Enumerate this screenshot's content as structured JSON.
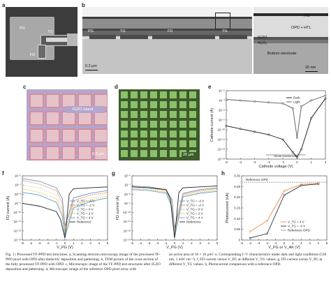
{
  "panels": {
    "a": {
      "letter": "a",
      "pg": "PG",
      "tg": "TG",
      "fd": "FD"
    },
    "b": {
      "letter": "b",
      "layers": [
        "PG",
        "TG",
        "FD",
        "TG"
      ],
      "scale": "0.2 μm",
      "zoom_labels": {
        "ito": "ITO",
        "opd": "OPD + HTL",
        "igzo": "IGZO",
        "al2o3": "Al₂O₃",
        "bottom": "Bottom electrode"
      },
      "zoom_scale": "20 nm"
    },
    "c": {
      "letter": "c",
      "island": "IGZO island",
      "scale": "0.2 μm"
    },
    "d": {
      "letter": "d",
      "scale": "20 μm"
    },
    "e": {
      "letter": "e"
    },
    "f": {
      "letter": "f"
    },
    "g": {
      "letter": "g"
    },
    "h": {
      "letter": "h",
      "reference_label": "Reference OPD"
    }
  },
  "caption": {
    "left": "Fig. 3 | Processed TF-PPD test structures. a, Scanning electron microscopy image of the processed TF-PPD pixel with OPD after dielectric deposition and patterning. b, TEM picture of the cross section of the fully processed TF-PPD with OPD. c, Microscopic image of the TF-PPD test structures after IGZO deposition and patterning. d, Microscopic image of the reference OPD pixel array with",
    "right": "an active area of 10 × 10 μm². e, Corresponding J–V characteristics under dark and light conditions (530 nm, 1 mW cm⁻²). f, FD current versus V_PG at different V_TG values. g, FD current versus V_PG at different V_TG values. h, Photocurrent comparison with a reference OPD."
  },
  "chart_data": [
    {
      "panel": "e",
      "type": "line",
      "xlabel": "Cathode voltage (V)",
      "ylabel": "Cathode current (A)",
      "xlim": [
        -5,
        2
      ],
      "x_ticks": [
        "-5",
        "-4",
        "-3",
        "-2",
        "-1",
        "0",
        "1",
        "2"
      ],
      "y_ticks": [
        "10⁻⁶",
        "10⁻⁷",
        "10⁻⁸",
        "10⁻⁹",
        "10⁻¹⁰",
        "10⁻¹¹",
        "10⁻¹²",
        "10⁻¹³"
      ],
      "annotation": "Diode reverse bias",
      "series": [
        {
          "name": "Dark",
          "x": [
            -5,
            -4,
            -3,
            -2,
            -1,
            -0.3,
            0,
            0.3,
            1,
            2
          ],
          "y": [
            -9.6,
            -9.9,
            -10.2,
            -10.5,
            -11.0,
            -12.3,
            -12.8,
            -12.0,
            -8.8,
            -6.8
          ]
        },
        {
          "name": "Light",
          "x": [
            -5,
            -4,
            -3,
            -2,
            -1,
            -0.3,
            0,
            0.3,
            1,
            2
          ],
          "y": [
            -6.9,
            -7.0,
            -7.1,
            -7.2,
            -7.3,
            -7.8,
            -10.8,
            -7.6,
            -7.0,
            -6.5
          ]
        }
      ]
    },
    {
      "panel": "f",
      "type": "line",
      "xlabel": "V_PG (V)",
      "ylabel": "FD current (A)",
      "xlim": [
        -5,
        5
      ],
      "x_ticks": [
        "-5",
        "-4",
        "-3",
        "-2",
        "-1",
        "0",
        "1",
        "2",
        "3",
        "4",
        "5"
      ],
      "y_ticks": [
        "10⁻⁶",
        "10⁻⁷",
        "10⁻⁸",
        "10⁻⁹",
        "10⁻¹⁰",
        "10⁻¹¹",
        "10⁻¹²",
        "10⁻¹³"
      ],
      "series": [
        {
          "name": "V_TG = -4 V",
          "x": [
            -5,
            -3,
            -1,
            -0.3,
            0,
            1,
            3,
            5
          ],
          "y": [
            -6.3,
            -6.6,
            -7.3,
            -8.5,
            -11.5,
            -8.4,
            -7.9,
            -7.6
          ]
        },
        {
          "name": "V_TG = -2 V",
          "x": [
            -5,
            -3,
            -1,
            -0.3,
            0,
            1,
            3,
            5
          ],
          "y": [
            -6.5,
            -6.9,
            -7.6,
            -9.0,
            -12.0,
            -8.7,
            -8.1,
            -7.8
          ]
        },
        {
          "name": "V_TG = 0 V",
          "x": [
            -5,
            -3,
            -1,
            -0.3,
            0,
            1,
            3,
            5
          ],
          "y": [
            -7.0,
            -7.3,
            -8.1,
            -9.6,
            -12.3,
            -9.0,
            -8.4,
            -8.0
          ]
        },
        {
          "name": "V_TG = 2 V",
          "x": [
            -5,
            -3,
            -1,
            -0.3,
            0,
            1,
            3,
            5
          ],
          "y": [
            -7.4,
            -7.8,
            -8.5,
            -10.0,
            -12.5,
            -9.3,
            -8.6,
            -8.2
          ]
        },
        {
          "name": "V_TG = 4 V",
          "x": [
            -5,
            -3,
            -1,
            -0.3,
            0,
            1,
            3,
            5
          ],
          "y": [
            -7.8,
            -8.1,
            -8.9,
            -10.4,
            -12.7,
            -9.5,
            -8.8,
            -8.4
          ]
        },
        {
          "name": "Reference",
          "x": [
            -5,
            -3,
            -1,
            -0.5,
            0,
            0.5,
            1,
            3,
            5
          ],
          "y": [
            -9.0,
            -9.3,
            -9.9,
            -10.8,
            -12.8,
            -8.0,
            -7.4,
            -7.3,
            -7.2
          ]
        }
      ]
    },
    {
      "panel": "g",
      "type": "line",
      "xlabel": "V_PG (V)",
      "ylabel": "FD current (A)",
      "xlim": [
        -5,
        5
      ],
      "x_ticks": [
        "-5",
        "-4",
        "-3",
        "-2",
        "-1",
        "0",
        "1",
        "2",
        "3",
        "4",
        "5"
      ],
      "y_ticks": [
        "10⁻⁶",
        "10⁻⁷",
        "10⁻⁸",
        "10⁻⁹",
        "10⁻¹⁰",
        "10⁻¹¹",
        "10⁻¹²",
        "10⁻¹³"
      ],
      "series": [
        {
          "name": "V_TG = -4 V",
          "x": [
            -5,
            -3,
            -1,
            -0.3,
            0,
            1,
            3,
            5
          ],
          "y": [
            -7.1,
            -7.2,
            -7.5,
            -8.6,
            -11.7,
            -7.9,
            -7.5,
            -7.3
          ]
        },
        {
          "name": "V_TG = -2 V",
          "x": [
            -5,
            -3,
            -1,
            -0.3,
            0,
            1,
            3,
            5
          ],
          "y": [
            -7.2,
            -7.3,
            -7.6,
            -8.8,
            -12.0,
            -8.0,
            -7.6,
            -7.4
          ]
        },
        {
          "name": "V_TG = 0 V",
          "x": [
            -5,
            -3,
            -1,
            -0.3,
            0,
            1,
            3,
            5
          ],
          "y": [
            -7.3,
            -7.4,
            -7.7,
            -9.0,
            -12.3,
            -8.1,
            -7.7,
            -7.5
          ]
        },
        {
          "name": "V_TG = 2 V",
          "x": [
            -5,
            -3,
            -1,
            -0.3,
            0,
            1,
            3,
            5
          ],
          "y": [
            -7.4,
            -7.5,
            -7.8,
            -9.2,
            -12.5,
            -8.2,
            -7.8,
            -7.6
          ]
        },
        {
          "name": "V_TG = 4 V",
          "x": [
            -5,
            -3,
            -1,
            -0.3,
            0,
            1,
            3,
            5
          ],
          "y": [
            -7.5,
            -7.6,
            -7.9,
            -9.4,
            -12.7,
            -8.3,
            -7.9,
            -7.7
          ]
        },
        {
          "name": "Reference",
          "x": [
            -5,
            -3,
            -1,
            -0.5,
            0,
            0.5,
            1,
            3,
            5
          ],
          "y": [
            -7.2,
            -7.3,
            -7.5,
            -8.5,
            -12.8,
            -7.8,
            -7.3,
            -7.2,
            -7.1
          ]
        }
      ]
    },
    {
      "panel": "h",
      "type": "line",
      "xlabel": "V_PG or V_AK (V)",
      "ylabel": "Photocurrent (nA)",
      "xlim": [
        -5,
        5
      ],
      "ylim": [
        0,
        0.3
      ],
      "x_ticks": [
        "-5",
        "-4",
        "-3",
        "-2",
        "-1",
        "0",
        "1",
        "2",
        "3",
        "4",
        "5"
      ],
      "y_ticks": [
        "0",
        "0.05",
        "0.10",
        "0.15",
        "0.20",
        "0.25",
        "0.30"
      ],
      "series": [
        {
          "name": "V_TG = 4 V",
          "x": [
            -4,
            -2,
            0,
            2,
            4
          ],
          "y": [
            0.04,
            0.09,
            0.23,
            0.26,
            0.265
          ]
        },
        {
          "name": "V_TG = -4 V",
          "x": [
            -4,
            -2,
            0,
            2,
            4
          ],
          "y": [
            0.01,
            0.03,
            0.21,
            0.255,
            0.262
          ]
        },
        {
          "name": "Reference OPD",
          "x": [
            -5,
            5
          ],
          "y": [
            0.27,
            0.27
          ]
        }
      ]
    }
  ],
  "colors": {
    "s1": "#6c8fc7",
    "s2": "#e88a4a",
    "s3": "#c7c7c7",
    "s4": "#efc64a",
    "s5": "#5aa0d8",
    "ref": "#222222",
    "dark": "#111111",
    "light": "#555555",
    "h1": "#e88a4a",
    "h2": "#333333"
  }
}
